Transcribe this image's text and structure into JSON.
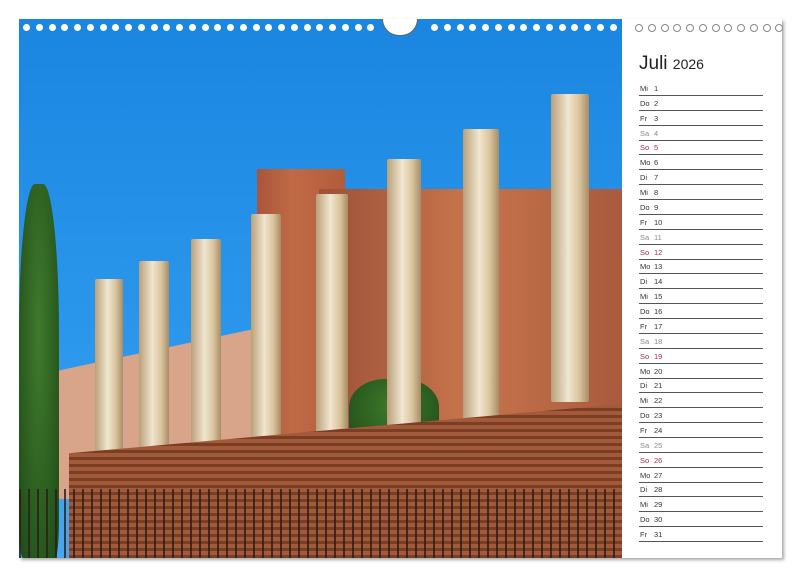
{
  "month": "Juli",
  "year": "2026",
  "days": [
    {
      "wd": "Mi",
      "n": "1"
    },
    {
      "wd": "Do",
      "n": "2"
    },
    {
      "wd": "Fr",
      "n": "3"
    },
    {
      "wd": "Sa",
      "n": "4"
    },
    {
      "wd": "So",
      "n": "5"
    },
    {
      "wd": "Mo",
      "n": "6"
    },
    {
      "wd": "Di",
      "n": "7"
    },
    {
      "wd": "Mi",
      "n": "8"
    },
    {
      "wd": "Do",
      "n": "9"
    },
    {
      "wd": "Fr",
      "n": "10"
    },
    {
      "wd": "Sa",
      "n": "11"
    },
    {
      "wd": "So",
      "n": "12"
    },
    {
      "wd": "Mo",
      "n": "13"
    },
    {
      "wd": "Di",
      "n": "14"
    },
    {
      "wd": "Mi",
      "n": "15"
    },
    {
      "wd": "Do",
      "n": "16"
    },
    {
      "wd": "Fr",
      "n": "17"
    },
    {
      "wd": "Sa",
      "n": "18"
    },
    {
      "wd": "So",
      "n": "19"
    },
    {
      "wd": "Mo",
      "n": "20"
    },
    {
      "wd": "Di",
      "n": "21"
    },
    {
      "wd": "Mi",
      "n": "22"
    },
    {
      "wd": "Do",
      "n": "23"
    },
    {
      "wd": "Fr",
      "n": "24"
    },
    {
      "wd": "Sa",
      "n": "25"
    },
    {
      "wd": "So",
      "n": "26"
    },
    {
      "wd": "Mo",
      "n": "27"
    },
    {
      "wd": "Di",
      "n": "28"
    },
    {
      "wd": "Mi",
      "n": "29"
    },
    {
      "wd": "Do",
      "n": "30"
    },
    {
      "wd": "Fr",
      "n": "31"
    }
  ],
  "colors": {
    "sky": "#1a86e0",
    "sunday": "#a0304a",
    "saturday": "#888888"
  }
}
